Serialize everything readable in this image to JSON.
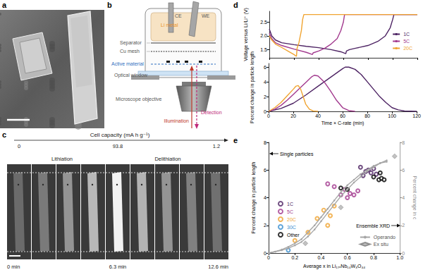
{
  "panel_labels": [
    "a",
    "b",
    "c",
    "d",
    "e"
  ],
  "panel_b": {
    "labels": {
      "li_metal": "Li metal",
      "ce": "CE",
      "we": "WE",
      "separator": "Separator",
      "cu_mesh": "Cu mesh",
      "active_material": "Active material",
      "optical_window": "Optical window",
      "objective": "Microscope objective",
      "illumination": "Illumination",
      "detection": "Detection"
    }
  },
  "panel_c": {
    "header": "Cell capacity (mA h g⁻¹)",
    "capacities": [
      "0",
      "93.8",
      "1.2"
    ],
    "phases": [
      "Lithiation",
      "Delithiation"
    ],
    "times": [
      "0 min",
      "6.3 min",
      "12.6 min"
    ]
  },
  "chart_data": [
    {
      "type": "line",
      "y_label": "Voltage versus Li/Li⁺ (V)",
      "xlim": [
        0,
        120
      ],
      "xticks": [
        0,
        20,
        40,
        60,
        80,
        100,
        120
      ],
      "ylim": [
        1.2,
        2.9
      ],
      "yticks": [
        1.5,
        {
          "value": 2,
          "label": "2.0"
        },
        2.5
      ],
      "grid": false,
      "legend": "right",
      "tick_labels": "y",
      "series": [
        {
          "name": "1C",
          "color": "#4d2363",
          "line_style": "solid",
          "x": [
            0,
            2,
            5,
            10,
            20,
            30,
            40,
            50,
            58,
            62,
            62.5,
            65,
            70,
            80,
            88,
            94,
            98,
            100,
            101,
            110,
            120
          ],
          "values": [
            2.25,
            2.0,
            1.85,
            1.75,
            1.68,
            1.62,
            1.57,
            1.5,
            1.42,
            1.35,
            1.45,
            1.5,
            1.55,
            1.65,
            1.8,
            2.0,
            2.3,
            2.6,
            2.78,
            2.78,
            2.78
          ]
        },
        {
          "name": "5C",
          "color": "#a23a8e",
          "line_style": "solid",
          "x": [
            0,
            2,
            5,
            10,
            20,
            30,
            35,
            35.5,
            40,
            45,
            50,
            55,
            58,
            60,
            61,
            70,
            120
          ],
          "values": [
            2.1,
            1.9,
            1.75,
            1.65,
            1.52,
            1.4,
            1.32,
            1.38,
            1.45,
            1.55,
            1.7,
            1.9,
            2.2,
            2.5,
            2.78,
            2.78,
            2.78
          ]
        },
        {
          "name": "20C",
          "color": "#f0a431",
          "line_style": "solid",
          "x": [
            0,
            2,
            5,
            10,
            15,
            20,
            22,
            22.5,
            24,
            26,
            27,
            28,
            40,
            120
          ],
          "values": [
            2.0,
            1.85,
            1.7,
            1.58,
            1.45,
            1.32,
            1.25,
            1.55,
            1.75,
            2.2,
            2.6,
            2.78,
            2.78,
            2.78
          ]
        }
      ]
    },
    {
      "type": "line",
      "x_label": "Time × C-rate (min)",
      "y_label": "Percent change in particle length",
      "xlim": [
        0,
        120
      ],
      "xticks": [
        0,
        20,
        40,
        60,
        80,
        100,
        120
      ],
      "ylim": [
        0,
        6.5
      ],
      "yticks": [
        0,
        2,
        4,
        6
      ],
      "grid": false,
      "series": [
        {
          "name": "1C",
          "color": "#4d2363",
          "line_style": "solid",
          "x": [
            0,
            10,
            20,
            30,
            40,
            50,
            55,
            60,
            62,
            65,
            70,
            75,
            80,
            85,
            90,
            95,
            100,
            105,
            110,
            120
          ],
          "values": [
            0,
            0.4,
            1.1,
            2.2,
            3.4,
            4.6,
            5.2,
            5.8,
            6.0,
            6.0,
            5.7,
            5.0,
            4.0,
            3.0,
            2.0,
            1.2,
            0.5,
            0.2,
            0.05,
            0
          ]
        },
        {
          "name": "5C",
          "color": "#a23a8e",
          "line_style": "solid",
          "x": [
            0,
            5,
            10,
            15,
            20,
            25,
            30,
            35,
            37,
            40,
            45,
            50,
            55,
            60,
            65,
            70
          ],
          "values": [
            0,
            0.3,
            0.8,
            1.5,
            2.3,
            3.1,
            3.9,
            4.7,
            4.9,
            4.8,
            4.0,
            2.8,
            1.5,
            0.5,
            0.1,
            0
          ]
        },
        {
          "name": "20C",
          "color": "#f0a431",
          "line_style": "solid",
          "x": [
            0,
            5,
            10,
            15,
            20,
            22,
            24,
            26,
            28,
            30,
            33,
            36,
            40
          ],
          "values": [
            0,
            0.5,
            1.2,
            2.1,
            3.0,
            3.4,
            3.5,
            3.0,
            2.0,
            1.0,
            0.3,
            0.05,
            0
          ]
        }
      ]
    },
    {
      "type": "scatter",
      "x_label": "Average x in Li₁₇ₓNb₁₄W₃O₄₄",
      "y_label": "Percent change in particle length",
      "y2_label": "Percent change in c",
      "annotations": [
        "Single particles",
        "Ensemble XRD"
      ],
      "xlim": [
        0,
        1
      ],
      "xticks": [
        0,
        0.2,
        0.4,
        0.6,
        0.8,
        {
          "value": 1,
          "label": "1.0"
        }
      ],
      "ylim": [
        0,
        8
      ],
      "yticks": [
        0,
        2,
        4,
        6,
        8
      ],
      "y2lim": [
        0,
        8
      ],
      "y2ticks": [
        0,
        2,
        4,
        6,
        8
      ],
      "grid": false,
      "legend": "left",
      "series": [
        {
          "name": "1C",
          "color": "#4d2363",
          "marker": "circle_open",
          "x": [
            0.7,
            0.72,
            0.74,
            0.76,
            0.78,
            0.8,
            0.82
          ],
          "values": [
            6.2,
            5.6,
            5.9,
            6.0,
            5.8,
            6.1,
            5.7
          ]
        },
        {
          "name": "5C",
          "color": "#a23a8e",
          "marker": "circle_open",
          "x": [
            0.45,
            0.5,
            0.55,
            0.58,
            0.6,
            0.62,
            0.65,
            0.68
          ],
          "values": [
            5.0,
            4.8,
            4.2,
            4.6,
            4.0,
            4.3,
            4.2,
            4.5
          ]
        },
        {
          "name": "20C",
          "color": "#f0a431",
          "marker": "circle_open",
          "x": [
            0.2,
            0.3,
            0.37,
            0.42,
            0.45,
            0.47,
            0.5
          ],
          "values": [
            0.9,
            1.5,
            2.5,
            3.1,
            2.0,
            2.7,
            3.4
          ]
        },
        {
          "name": "30C",
          "color": "#3a8ed0",
          "marker": "circle_open",
          "x": [
            0.15
          ],
          "values": [
            0.2
          ]
        },
        {
          "name": "Other",
          "color": "#000000",
          "marker": "circle_open",
          "x": [
            0.55,
            0.6,
            0.8,
            0.84,
            0.85,
            0.86,
            0.88
          ],
          "values": [
            4.7,
            4.6,
            5.5,
            5.3,
            5.8,
            5.4,
            5.3
          ]
        },
        {
          "name": "Operando",
          "type": "line",
          "color": "#a6a6a6",
          "marker": "circle",
          "line_style": "solid",
          "axis": "y2",
          "x": [
            0,
            0.05,
            0.1,
            0.15,
            0.2,
            0.25,
            0.3,
            0.35,
            0.4,
            0.45,
            0.5,
            0.55,
            0.6,
            0.65,
            0.7,
            0.75,
            0.8,
            0.85,
            0.9
          ],
          "values": [
            0,
            0.1,
            0.2,
            0.35,
            0.55,
            0.8,
            1.2,
            1.7,
            2.3,
            2.9,
            3.5,
            4.1,
            4.6,
            5.1,
            5.5,
            5.9,
            6.2,
            6.5,
            6.7
          ]
        },
        {
          "name": "Operando",
          "type": "line",
          "color": "#a6a6a6",
          "marker": "circle",
          "line_style": "solid",
          "axis": "y2",
          "x": [
            0,
            0.05,
            0.1,
            0.15,
            0.2,
            0.25,
            0.3,
            0.35,
            0.4,
            0.45,
            0.5,
            0.55,
            0.6,
            0.65,
            0.7,
            0.75,
            0.8,
            0.85,
            0.9
          ],
          "values": [
            0,
            0.1,
            0.25,
            0.45,
            0.7,
            1.0,
            1.5,
            2.0,
            2.6,
            3.2,
            3.8,
            4.4,
            4.9,
            5.3,
            5.7,
            6.0,
            6.3,
            6.5,
            6.6
          ]
        },
        {
          "name": "Ex situ",
          "type": "scatter",
          "color": "#b3b3b3",
          "marker": "diamond",
          "axis": "y2",
          "x": [
            0.28,
            0.55,
            0.96
          ],
          "values": [
            0.7,
            3.3,
            7.0
          ]
        }
      ]
    }
  ]
}
